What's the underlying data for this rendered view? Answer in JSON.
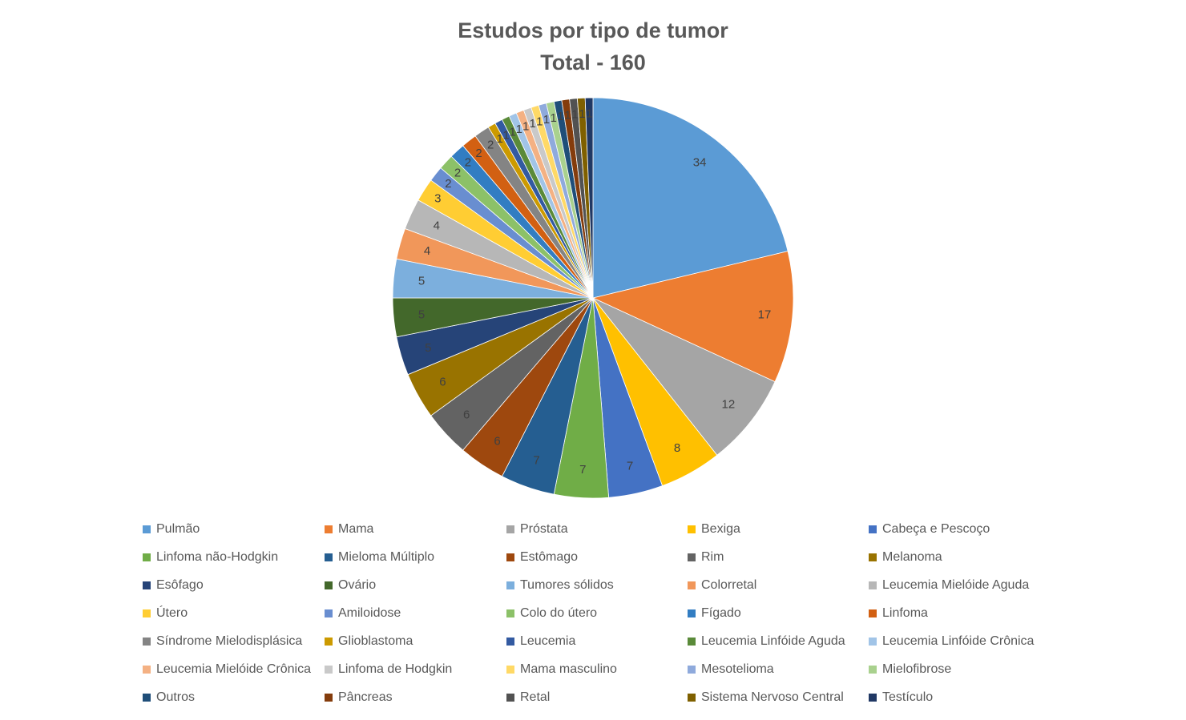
{
  "chart_data": {
    "type": "pie",
    "title": "Estudos por tipo de tumor",
    "subtitle": "Total - 160",
    "legend_position": "bottom",
    "series": [
      {
        "categories": [
          "Pulmão",
          "Mama",
          "Próstata",
          "Bexiga",
          "Cabeça e Pescoço",
          "Linfoma não-Hodgkin",
          "Mieloma Múltiplo",
          "Estômago",
          "Rim",
          "Melanoma",
          "Esôfago",
          "Ovário",
          "Tumores sólidos",
          "Colorretal",
          "Leucemia Mielóide Aguda",
          "Útero",
          "Amiloidose",
          "Colo do útero",
          "Fígado",
          "Linfoma",
          "Síndrome Mielodisplásica",
          "Glioblastoma",
          "Leucemia",
          "Leucemia Linfóide Aguda",
          "Leucemia Linfóide Crônica",
          "Leucemia Mielóide Crônica",
          "Linfoma de Hodgkin",
          "Mama masculino",
          "Mesotelioma",
          "Mielofibrose",
          "Outros",
          "Pâncreas",
          "Retal",
          "Sistema Nervoso Central",
          "Testículo"
        ],
        "values": [
          34,
          17,
          12,
          8,
          7,
          7,
          7,
          6,
          6,
          6,
          5,
          5,
          5,
          4,
          4,
          3,
          2,
          2,
          2,
          2,
          2,
          1,
          1,
          1,
          1,
          1,
          1,
          1,
          1,
          1,
          1,
          1,
          1,
          1,
          1
        ],
        "colors": [
          "#5B9BD5",
          "#ED7D31",
          "#A5A5A5",
          "#FFC000",
          "#4472C4",
          "#70AD47",
          "#255E91",
          "#9E480E",
          "#636363",
          "#997300",
          "#264478",
          "#43682B",
          "#7CAFDD",
          "#F1975A",
          "#B7B7B7",
          "#FFCD33",
          "#698ED0",
          "#8CC168",
          "#327DC2",
          "#D26012",
          "#848484",
          "#CC9A00",
          "#335AA1",
          "#5A8A39",
          "#A1C4E7",
          "#F4B183",
          "#C9C9C9",
          "#FFD966",
          "#8FAADC",
          "#A9D18E",
          "#1F4E79",
          "#843C0C",
          "#525252",
          "#7F6000",
          "#203864"
        ],
        "data_labels": [
          "34",
          "17",
          "12",
          "8",
          "7",
          "7",
          "7",
          "6",
          "6",
          "6",
          "5",
          "5",
          "5",
          "4",
          "4",
          "3",
          "2",
          "2",
          "2",
          "2",
          "2",
          "1",
          "1",
          "1",
          "1",
          "1",
          "1",
          "1",
          "1",
          "1",
          "1",
          "1",
          "1",
          "1",
          "1"
        ]
      }
    ]
  }
}
